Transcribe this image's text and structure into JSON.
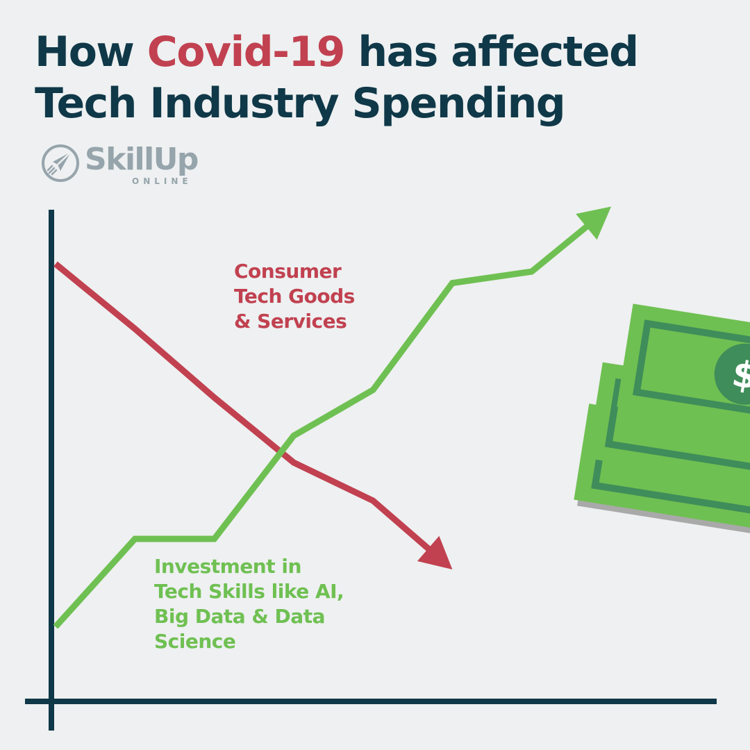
{
  "title": {
    "prefix": "How ",
    "highlight": "Covid-19",
    "suffix": " has affected",
    "line2": "Tech Industry Spending"
  },
  "logo": {
    "word": "SkillUp",
    "sub": "ONLINE"
  },
  "colors": {
    "dark": "#0f3848",
    "red": "#c14150",
    "green": "#6fc052",
    "background": "#eef0f1",
    "logo_gray": "#96a4ab"
  },
  "icons": [
    "rocket-icon",
    "dollar-bills-icon"
  ],
  "chart_data": {
    "type": "line",
    "grid": false,
    "legend": "inline labels",
    "series": [
      {
        "name": "Consumer\nTech Goods\n& Services",
        "color": "#c14150",
        "trend": "decreasing",
        "points": [
          [
            0,
            100
          ],
          [
            1,
            83
          ],
          [
            2,
            65
          ],
          [
            3,
            48
          ],
          [
            4,
            38
          ],
          [
            5,
            20
          ]
        ]
      },
      {
        "name": "Investment in\nTech Skills like AI,\nBig Data & Data\nScience",
        "color": "#6fc052",
        "trend": "increasing",
        "points": [
          [
            0,
            5
          ],
          [
            1,
            28
          ],
          [
            2,
            28
          ],
          [
            3,
            55
          ],
          [
            4,
            67
          ],
          [
            5,
            95
          ],
          [
            6,
            98
          ],
          [
            7,
            115
          ]
        ]
      }
    ]
  }
}
